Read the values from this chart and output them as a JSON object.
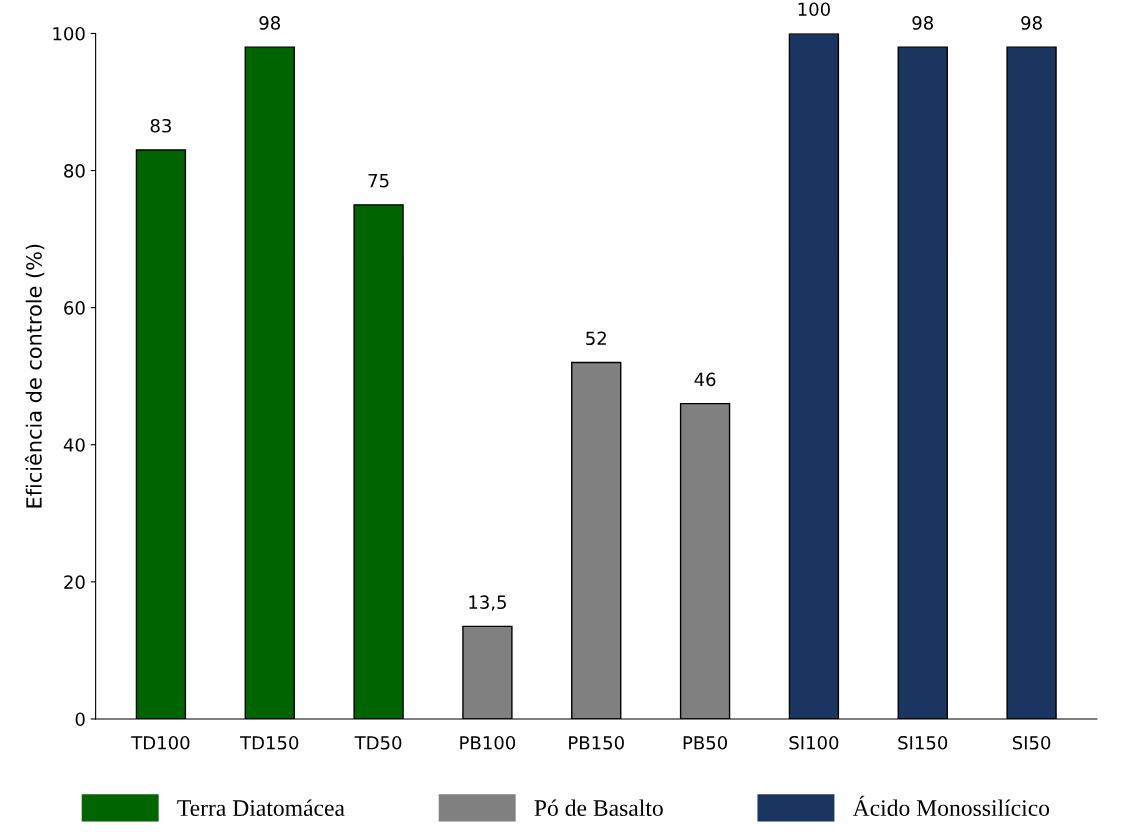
{
  "chart_data": {
    "type": "bar",
    "ylabel": "Eficiência de controle (%)",
    "categories": [
      "TD100",
      "TD150",
      "TD50",
      "PB100",
      "PB150",
      "PB50",
      "SI100",
      "SI150",
      "SI50"
    ],
    "series": [
      {
        "name": "Terra Diatomácea",
        "color": "#006400",
        "values": [
          83,
          98,
          75,
          null,
          null,
          null,
          null,
          null,
          null
        ],
        "value_labels": [
          "83",
          "98",
          "75",
          null,
          null,
          null,
          null,
          null,
          null
        ]
      },
      {
        "name": "Pó de Basalto",
        "color": "#808080",
        "values": [
          null,
          null,
          null,
          13.5,
          52,
          46,
          null,
          null,
          null
        ],
        "value_labels": [
          null,
          null,
          null,
          "13,5",
          "52",
          "46",
          null,
          null,
          null
        ]
      },
      {
        "name": "Ácido Monossilícico",
        "color": "#1a3660",
        "values": [
          null,
          null,
          null,
          null,
          null,
          null,
          100,
          98,
          98
        ],
        "value_labels": [
          null,
          null,
          null,
          null,
          null,
          null,
          "100",
          "98",
          "98"
        ]
      }
    ],
    "ylim": [
      0,
      100
    ],
    "yticks": [
      0,
      20,
      40,
      60,
      80,
      100
    ],
    "grid": false,
    "legend": "bottom"
  }
}
